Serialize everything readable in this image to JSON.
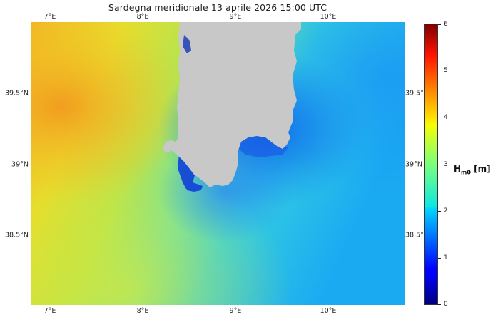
{
  "title": "Sardegna meridionale  13 aprile 2026  15:00 UTC",
  "lon_ticks": [
    "7°E",
    "8°E",
    "9°E",
    "10°E"
  ],
  "lat_ticks": [
    "39.5°N",
    "39°N",
    "38.5°N"
  ],
  "lat_ticks_right": [
    "39.5°",
    "39°N",
    "38.5°"
  ],
  "colorbar": {
    "label_main": "H",
    "label_sub": "m0",
    "label_unit": " [m]",
    "ticks": [
      "6",
      "5",
      "4",
      "3",
      "2",
      "1",
      "0"
    ],
    "min": 0,
    "max": 6,
    "colormap": "jet"
  },
  "map": {
    "variable": "significant wave height",
    "land_color": "#c8c8c8",
    "value_range_shown": [
      0.3,
      4.6
    ]
  }
}
